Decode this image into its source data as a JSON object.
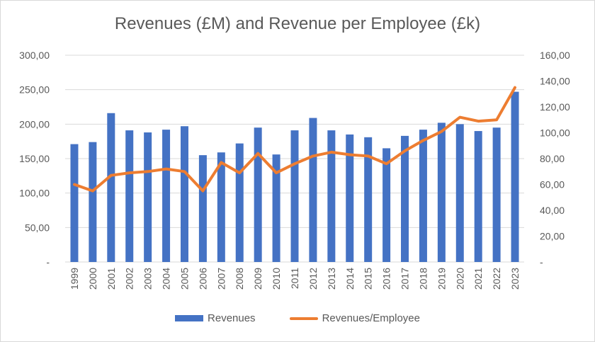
{
  "chart_data": {
    "type": "bar",
    "title": "Revenues (£M) and Revenue per Employee (£k)",
    "categories": [
      "1999",
      "2000",
      "2001",
      "2002",
      "2003",
      "2004",
      "2005",
      "2006",
      "2007",
      "2008",
      "2009",
      "2010",
      "2011",
      "2012",
      "2013",
      "2014",
      "2015",
      "2016",
      "2017",
      "2018",
      "2019",
      "2020",
      "2021",
      "2022",
      "2023"
    ],
    "series": [
      {
        "name": "Revenues",
        "type": "bar",
        "axis": "left",
        "color": "#4472c4",
        "values": [
          171,
          174,
          216,
          191,
          188,
          192,
          197,
          155,
          159,
          172,
          195,
          156,
          191,
          209,
          191,
          185,
          181,
          165,
          183,
          192,
          202,
          200,
          190,
          195,
          247
        ]
      },
      {
        "name": "Revenues/Employee",
        "type": "line",
        "axis": "right",
        "color": "#ed7d31",
        "values": [
          60,
          55,
          67,
          69,
          70,
          72,
          70,
          55,
          77,
          69,
          84,
          69,
          76,
          82,
          85,
          83,
          82,
          76,
          86,
          94,
          101,
          112,
          109,
          110,
          135
        ]
      }
    ],
    "left_axis": {
      "min": 0,
      "max": 300,
      "ticks": [
        "-",
        "50,00",
        "100,00",
        "150,00",
        "200,00",
        "250,00",
        "300,00"
      ]
    },
    "right_axis": {
      "min": 0,
      "max": 160,
      "ticks": [
        "-",
        "20,00",
        "40,00",
        "60,00",
        "80,00",
        "100,00",
        "120,00",
        "140,00",
        "160,00"
      ]
    },
    "grid": true,
    "legend_position": "bottom"
  }
}
